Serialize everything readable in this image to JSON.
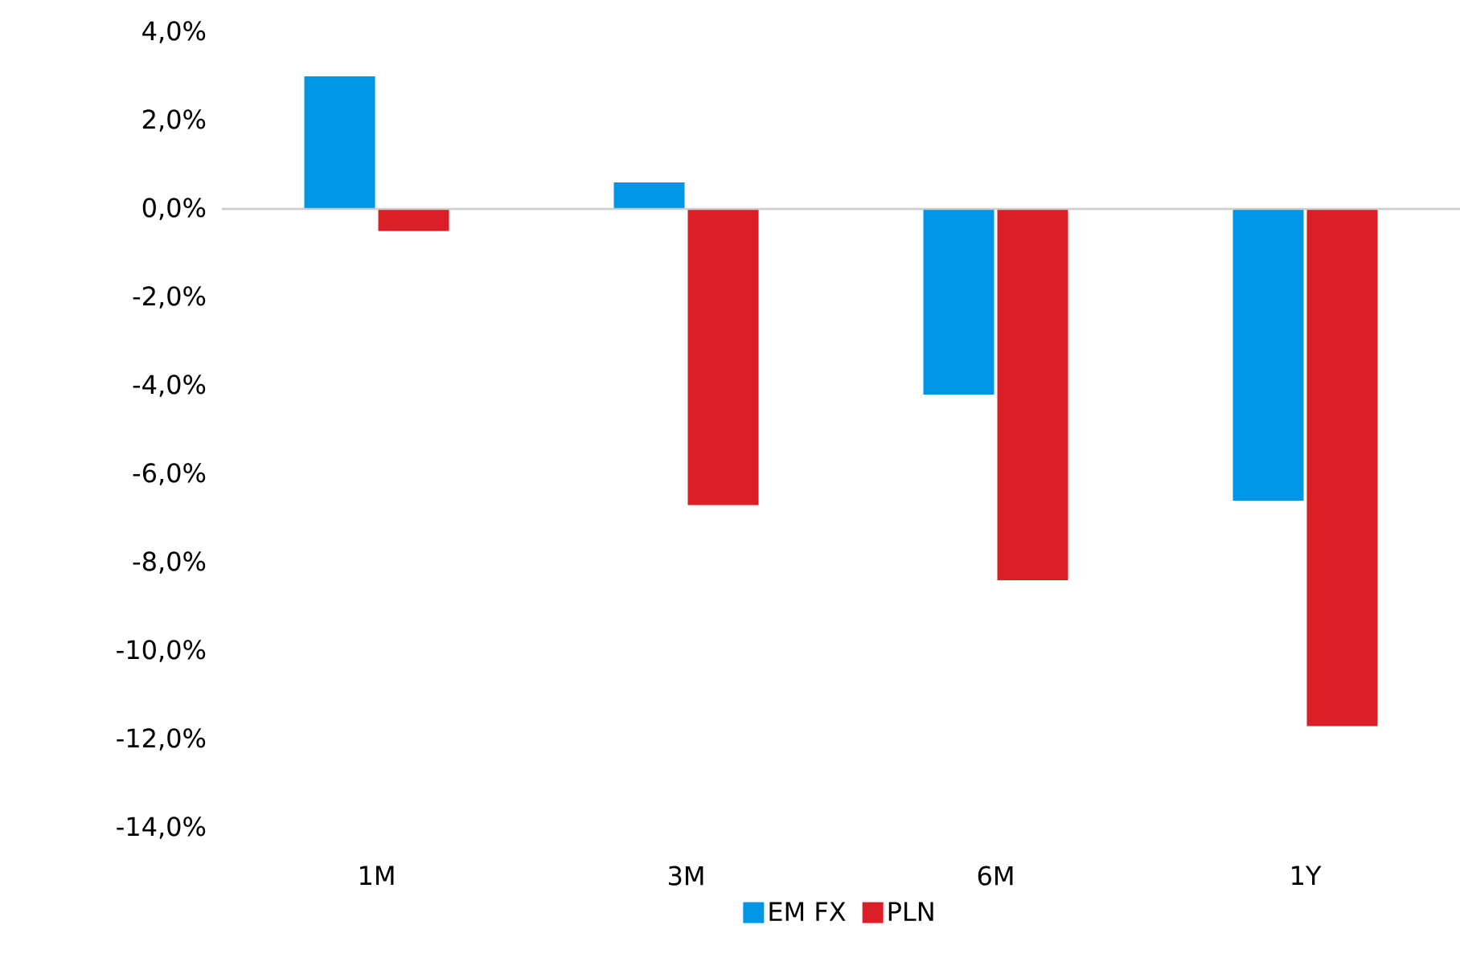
{
  "chart_data": {
    "type": "bar",
    "categories": [
      "1M",
      "3M",
      "6M",
      "1Y"
    ],
    "series": [
      {
        "name": "EM FX",
        "color": "#0096e6",
        "values": [
          3.0,
          0.6,
          -4.2,
          -6.6
        ]
      },
      {
        "name": "PLN",
        "color": "#da1f26",
        "values": [
          -0.5,
          -6.7,
          -8.4,
          -11.7
        ]
      }
    ],
    "ylim": [
      -14,
      4
    ],
    "yticks": [
      {
        "value": 4,
        "label": "4,0%"
      },
      {
        "value": 2,
        "label": "2,0%"
      },
      {
        "value": 0,
        "label": "0,0%"
      },
      {
        "value": -2,
        "label": "-2,0%"
      },
      {
        "value": -4,
        "label": "-4,0%"
      },
      {
        "value": -6,
        "label": "-6,0%"
      },
      {
        "value": -8,
        "label": "-8,0%"
      },
      {
        "value": -10,
        "label": "-10,0%"
      },
      {
        "value": -12,
        "label": "-12,0%"
      },
      {
        "value": -14,
        "label": "-14,0%"
      }
    ],
    "legend": "bottom"
  }
}
